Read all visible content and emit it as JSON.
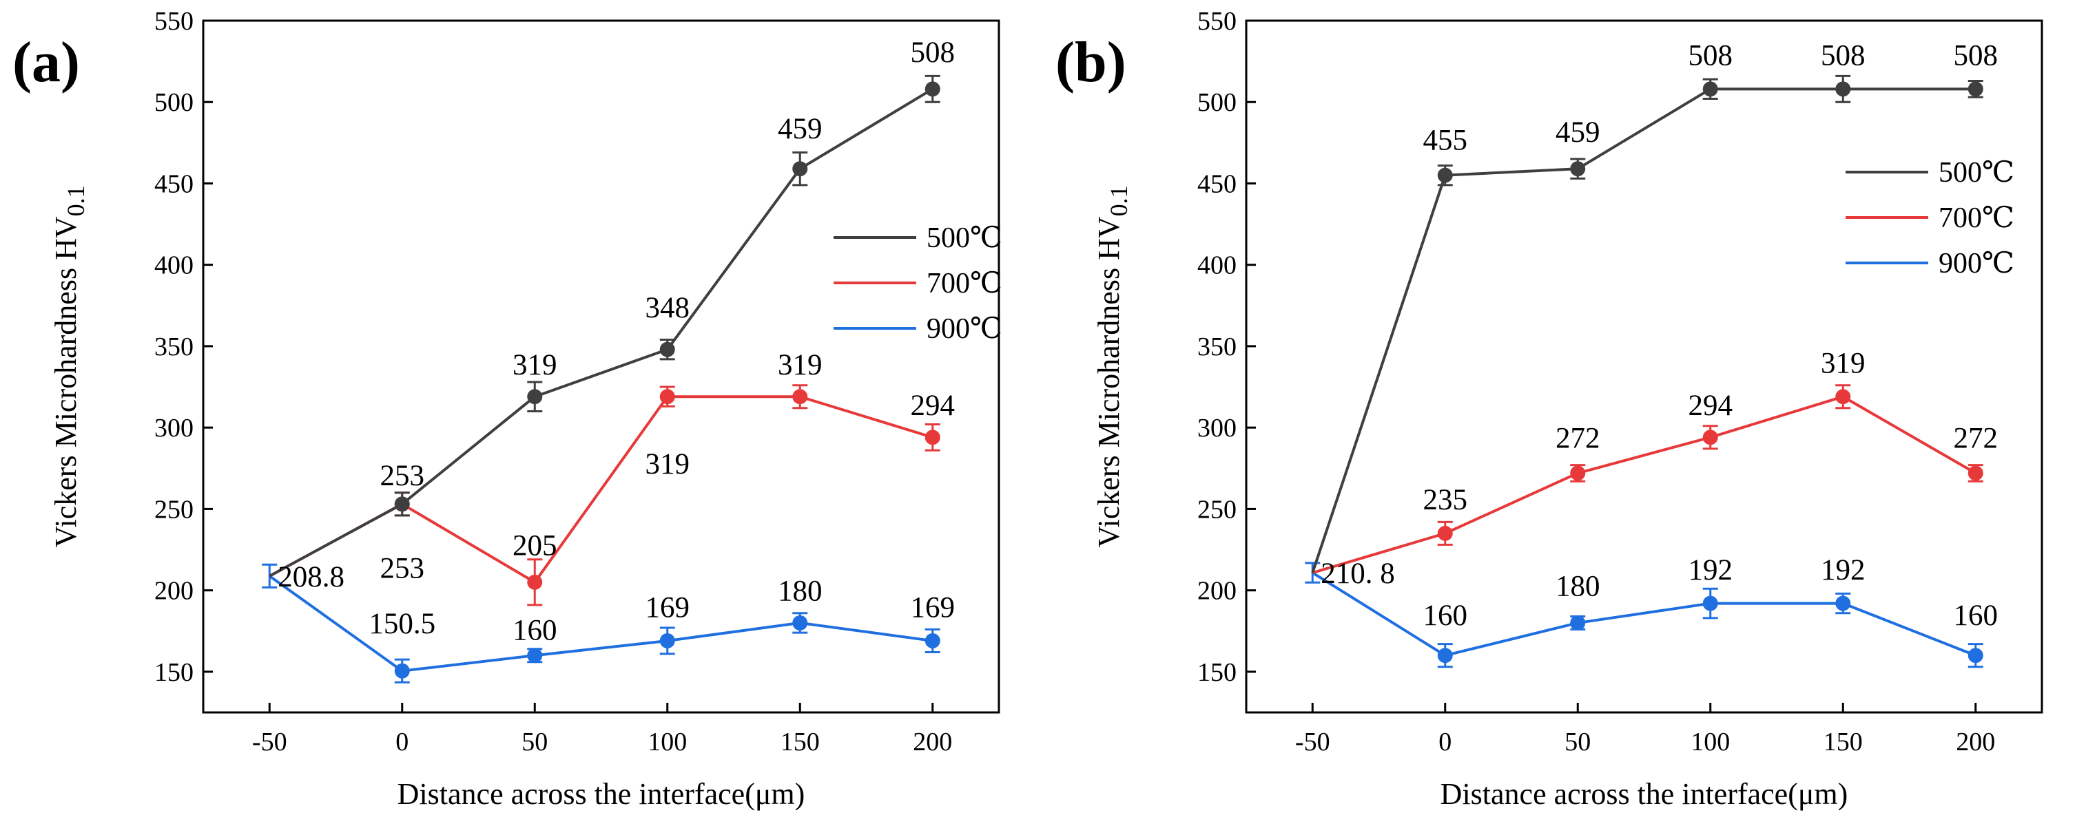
{
  "chart_data": [
    {
      "type": "line",
      "panel_label": "(a)",
      "xlabel": "Distance across the interface(μm)",
      "ylabel_main": "Vickers Microhardness HV",
      "ylabel_sub": "0.1",
      "x": [
        -50,
        0,
        50,
        100,
        150,
        200
      ],
      "x_tick_labels": [
        "-50",
        "0",
        "50",
        "100",
        "150",
        "200"
      ],
      "xlim": [
        -75,
        225
      ],
      "ylim": [
        125,
        550
      ],
      "y_ticks": [
        150,
        200,
        250,
        300,
        350,
        400,
        450,
        500,
        550
      ],
      "y_tick_labels": [
        "150",
        "200",
        "250",
        "300",
        "350",
        "400",
        "450",
        "500",
        "550"
      ],
      "legend_position": "center-right",
      "series": [
        {
          "name": "500℃",
          "color": "#3f3f3f",
          "values": [
            208.8,
            253,
            319,
            348,
            459,
            508
          ],
          "errors": [
            0,
            7,
            9,
            6,
            10,
            8
          ]
        },
        {
          "name": "700℃",
          "color": "#e8393a",
          "values": [
            208.8,
            253,
            205,
            319,
            319,
            294
          ],
          "errors": [
            0,
            7,
            14,
            6,
            7,
            8
          ]
        },
        {
          "name": "900℃",
          "color": "#1f6fe0",
          "values": [
            208.8,
            150.5,
            160,
            169,
            180,
            169
          ],
          "errors": [
            7,
            7,
            4,
            8,
            6,
            7
          ]
        }
      ],
      "data_labels": [
        {
          "text": "208.8",
          "x": -50,
          "y": 208.8,
          "color": "#000000"
        },
        {
          "text": "253",
          "x": 0,
          "y": 271,
          "color": "#000000"
        },
        {
          "text": "253",
          "x": 0,
          "y": 214,
          "color": "#000000"
        },
        {
          "text": "150.5",
          "x": 0,
          "y": 180,
          "color": "#000000"
        },
        {
          "text": "319",
          "x": 50,
          "y": 339,
          "color": "#000000"
        },
        {
          "text": "205",
          "x": 50,
          "y": 228,
          "color": "#000000"
        },
        {
          "text": "160",
          "x": 50,
          "y": 176,
          "color": "#000000"
        },
        {
          "text": "348",
          "x": 100,
          "y": 374,
          "color": "#000000"
        },
        {
          "text": "319",
          "x": 100,
          "y": 278,
          "color": "#000000"
        },
        {
          "text": "169",
          "x": 100,
          "y": 190,
          "color": "#000000"
        },
        {
          "text": "459",
          "x": 150,
          "y": 484,
          "color": "#000000"
        },
        {
          "text": "319",
          "x": 150,
          "y": 339,
          "color": "#000000"
        },
        {
          "text": "180",
          "x": 150,
          "y": 200,
          "color": "#000000"
        },
        {
          "text": "508",
          "x": 200,
          "y": 531,
          "color": "#000000"
        },
        {
          "text": "294",
          "x": 200,
          "y": 314,
          "color": "#000000"
        },
        {
          "text": "169",
          "x": 200,
          "y": 190,
          "color": "#000000"
        }
      ]
    },
    {
      "type": "line",
      "panel_label": "(b)",
      "xlabel": "Distance across the interface(μm)",
      "ylabel_main": "Vickers Microhardness HV",
      "ylabel_sub": "0.1",
      "x": [
        -50,
        0,
        50,
        100,
        150,
        200
      ],
      "x_tick_labels": [
        "-50",
        "0",
        "50",
        "100",
        "150",
        "200"
      ],
      "xlim": [
        -75,
        225
      ],
      "ylim": [
        125,
        550
      ],
      "y_ticks": [
        150,
        200,
        250,
        300,
        350,
        400,
        450,
        500,
        550
      ],
      "y_tick_labels": [
        "150",
        "200",
        "250",
        "300",
        "350",
        "400",
        "450",
        "500",
        "550"
      ],
      "legend_position": "upper-right",
      "series": [
        {
          "name": "500℃",
          "color": "#3f3f3f",
          "values": [
            210.8,
            455,
            459,
            508,
            508,
            508
          ],
          "errors": [
            0,
            6,
            6,
            6,
            8,
            5
          ]
        },
        {
          "name": "700℃",
          "color": "#e8393a",
          "values": [
            210.8,
            235,
            272,
            294,
            319,
            272
          ],
          "errors": [
            0,
            7,
            5,
            7,
            7,
            5
          ]
        },
        {
          "name": "900℃",
          "color": "#1f6fe0",
          "values": [
            210.8,
            160,
            180,
            192,
            192,
            160
          ],
          "errors": [
            6,
            7,
            4,
            9,
            6,
            7
          ]
        }
      ],
      "data_labels": [
        {
          "text": "210. 8",
          "x": -50,
          "y": 210.8,
          "color": "#000000"
        },
        {
          "text": "455",
          "x": 0,
          "y": 477,
          "color": "#000000"
        },
        {
          "text": "235",
          "x": 0,
          "y": 256,
          "color": "#000000"
        },
        {
          "text": "160",
          "x": 0,
          "y": 185,
          "color": "#000000"
        },
        {
          "text": "459",
          "x": 50,
          "y": 482,
          "color": "#000000"
        },
        {
          "text": "272",
          "x": 50,
          "y": 294,
          "color": "#000000"
        },
        {
          "text": "180",
          "x": 50,
          "y": 203,
          "color": "#000000"
        },
        {
          "text": "508",
          "x": 100,
          "y": 529,
          "color": "#000000"
        },
        {
          "text": "294",
          "x": 100,
          "y": 314,
          "color": "#000000"
        },
        {
          "text": "192",
          "x": 100,
          "y": 213,
          "color": "#000000"
        },
        {
          "text": "508",
          "x": 150,
          "y": 529,
          "color": "#000000"
        },
        {
          "text": "319",
          "x": 150,
          "y": 340,
          "color": "#000000"
        },
        {
          "text": "192",
          "x": 150,
          "y": 213,
          "color": "#000000"
        },
        {
          "text": "508",
          "x": 200,
          "y": 529,
          "color": "#000000"
        },
        {
          "text": "272",
          "x": 200,
          "y": 294,
          "color": "#000000"
        },
        {
          "text": "160",
          "x": 200,
          "y": 185,
          "color": "#000000"
        }
      ]
    }
  ]
}
